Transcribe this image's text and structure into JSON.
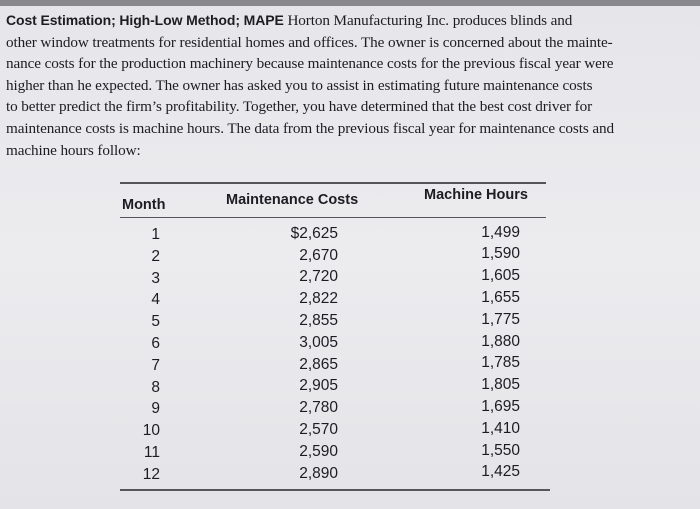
{
  "document": {
    "heading": "Cost Estimation; High-Low Method; MAPE",
    "lines": [
      "Horton Manufacturing Inc. produces blinds and",
      "other window treatments for residential homes and offices. The owner is concerned about the mainte-",
      "nance costs for the production machinery because maintenance costs for the previous fiscal year were",
      "higher than he expected. The owner has asked you to assist in estimating future maintenance costs",
      "to better predict the firm’s profitability. Together, you have determined that the best cost driver for",
      "maintenance costs is machine hours. The data from the previous fiscal year for maintenance costs and",
      "machine hours follow:"
    ],
    "table": {
      "columns": [
        "Month",
        "Maintenance Costs",
        "Machine Hours"
      ],
      "rows": [
        [
          "1",
          "$2,625",
          "1,499"
        ],
        [
          "2",
          "2,670",
          "1,590"
        ],
        [
          "3",
          "2,720",
          "1,605"
        ],
        [
          "4",
          "2,822",
          "1,655"
        ],
        [
          "5",
          "2,855",
          "1,775"
        ],
        [
          "6",
          "3,005",
          "1,880"
        ],
        [
          "7",
          "2,865",
          "1,785"
        ],
        [
          "8",
          "2,905",
          "1,805"
        ],
        [
          "9",
          "2,780",
          "1,695"
        ],
        [
          "10",
          "2,570",
          "1,410"
        ],
        [
          "11",
          "2,590",
          "1,550"
        ],
        [
          "12",
          "2,890",
          "1,425"
        ]
      ]
    }
  }
}
